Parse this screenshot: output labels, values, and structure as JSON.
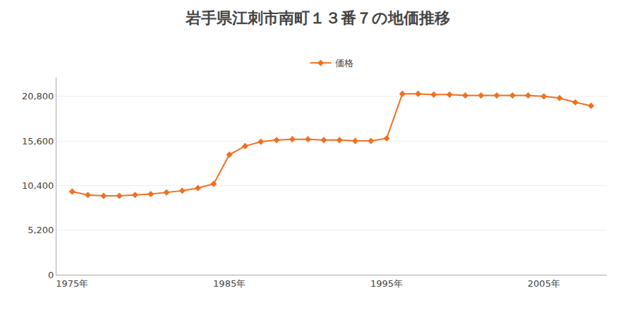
{
  "chart_data": {
    "type": "line",
    "title": "岩手県江刺市南町１３番７の地価推移",
    "x": [
      1975,
      1976,
      1977,
      1978,
      1979,
      1980,
      1981,
      1982,
      1983,
      1984,
      1985,
      1986,
      1987,
      1988,
      1989,
      1990,
      1991,
      1992,
      1993,
      1994,
      1995,
      1996,
      1997,
      1998,
      1999,
      2000,
      2001,
      2002,
      2003,
      2004,
      2005,
      2006,
      2007,
      2008
    ],
    "series": [
      {
        "name": "価格",
        "color": "#F07020",
        "values": [
          9700,
          9300,
          9200,
          9200,
          9300,
          9400,
          9600,
          9800,
          10100,
          10600,
          14000,
          15000,
          15500,
          15700,
          15800,
          15800,
          15700,
          15700,
          15600,
          15600,
          15900,
          21100,
          21100,
          21000,
          21000,
          20900,
          20900,
          20900,
          20900,
          20900,
          20800,
          20600,
          20100,
          19700
        ]
      }
    ],
    "marker": "diamond",
    "xlim": [
      1974,
      2009
    ],
    "xticks": [
      {
        "value": 1975,
        "label": "1975年"
      },
      {
        "value": 1985,
        "label": "1985年"
      },
      {
        "value": 1995,
        "label": "1995年"
      },
      {
        "value": 2005,
        "label": "2005年"
      }
    ],
    "ylim": [
      0,
      23000
    ],
    "yticks": [
      0,
      {
        "value": 5200,
        "label": "5,200"
      },
      {
        "value": 10400,
        "label": "10,400"
      },
      {
        "value": 15600,
        "label": "15,600"
      },
      {
        "value": 20800,
        "label": "20,800"
      }
    ],
    "grid": true,
    "legend": "top"
  }
}
